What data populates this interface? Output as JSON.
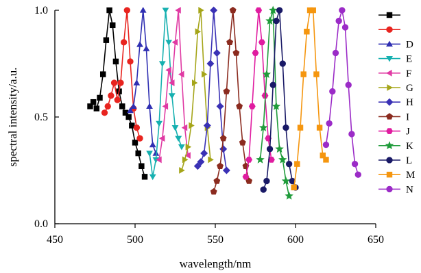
{
  "chart_data": {
    "type": "line",
    "xlabel": "wavelength/nm",
    "ylabel": "spectral intensity/a.u.",
    "xlim": [
      450,
      650
    ],
    "ylim": [
      0,
      1.0
    ],
    "xticks": [
      "450",
      "500",
      "550",
      "600",
      "650"
    ],
    "yticks": [
      "0.0",
      "0.5",
      "1.0"
    ],
    "grid": false,
    "legend_position": "right",
    "series": [
      {
        "name": "",
        "color": "#000000",
        "marker": "square",
        "x": [
          472,
          474,
          476,
          478,
          480,
          482,
          484,
          486,
          488,
          490,
          492,
          494,
          496,
          498,
          500,
          502,
          504,
          506
        ],
        "y": [
          0.55,
          0.57,
          0.54,
          0.59,
          0.7,
          0.86,
          1.0,
          0.93,
          0.76,
          0.62,
          0.55,
          0.52,
          0.5,
          0.46,
          0.38,
          0.33,
          0.27,
          0.22
        ]
      },
      {
        "name": "",
        "color": "#e8241f",
        "marker": "circle",
        "x": [
          481,
          483,
          485,
          487,
          489,
          491,
          493,
          495,
          497,
          499,
          501,
          503
        ],
        "y": [
          0.52,
          0.55,
          0.6,
          0.66,
          0.58,
          0.66,
          0.85,
          1.0,
          0.76,
          0.54,
          0.45,
          0.4
        ]
      },
      {
        "name": "D",
        "color": "#2f2fb2",
        "marker": "triangle-up",
        "x": [
          497,
          499,
          501,
          503,
          505,
          507,
          509,
          511,
          513
        ],
        "y": [
          0.53,
          0.55,
          0.66,
          0.84,
          1.0,
          0.82,
          0.55,
          0.37,
          0.33
        ]
      },
      {
        "name": "E",
        "color": "#16b0b0",
        "marker": "triangle-down",
        "x": [
          509,
          511,
          513,
          515,
          517,
          519,
          521,
          523,
          525,
          527,
          529
        ],
        "y": [
          0.33,
          0.22,
          0.3,
          0.47,
          0.75,
          1.0,
          0.85,
          0.6,
          0.45,
          0.4,
          0.36
        ]
      },
      {
        "name": "F",
        "color": "#e03aa3",
        "marker": "triangle-left",
        "x": [
          515,
          517,
          519,
          521,
          523,
          525,
          527,
          529,
          531,
          533
        ],
        "y": [
          0.3,
          0.4,
          0.55,
          0.72,
          0.66,
          0.85,
          1.0,
          0.7,
          0.45,
          0.32
        ]
      },
      {
        "name": "G",
        "color": "#a5a519",
        "marker": "triangle-right",
        "x": [
          529,
          531,
          533,
          535,
          537,
          539,
          541,
          543,
          545,
          547
        ],
        "y": [
          0.25,
          0.3,
          0.36,
          0.46,
          0.66,
          0.9,
          1.0,
          0.7,
          0.45,
          0.3
        ]
      },
      {
        "name": "H",
        "color": "#3a31b5",
        "marker": "diamond",
        "x": [
          539,
          541,
          543,
          545,
          547,
          549,
          551,
          553,
          555,
          557
        ],
        "y": [
          0.27,
          0.29,
          0.33,
          0.46,
          0.75,
          1.0,
          0.8,
          0.55,
          0.35,
          0.25
        ]
      },
      {
        "name": "I",
        "color": "#8b2b1f",
        "marker": "pentagon",
        "x": [
          549,
          551,
          553,
          555,
          557,
          559,
          561,
          563,
          565,
          567,
          569,
          571
        ],
        "y": [
          0.15,
          0.2,
          0.27,
          0.4,
          0.62,
          0.85,
          1.0,
          0.8,
          0.55,
          0.38,
          0.27,
          0.2
        ]
      },
      {
        "name": "J",
        "color": "#e01ca0",
        "marker": "hexagon",
        "x": [
          569,
          571,
          573,
          575,
          577,
          579,
          581,
          583,
          585
        ],
        "y": [
          0.22,
          0.3,
          0.55,
          0.8,
          1.0,
          0.85,
          0.6,
          0.4,
          0.3
        ]
      },
      {
        "name": "K",
        "color": "#1f9b3a",
        "marker": "star",
        "x": [
          578,
          580,
          582,
          584,
          586,
          588,
          590,
          592,
          594,
          596
        ],
        "y": [
          0.3,
          0.45,
          0.7,
          0.95,
          1.0,
          0.55,
          0.35,
          0.3,
          0.2,
          0.13
        ]
      },
      {
        "name": "L",
        "color": "#191966",
        "marker": "circle",
        "x": [
          580,
          582,
          584,
          586,
          588,
          590,
          592,
          594,
          596,
          598,
          600
        ],
        "y": [
          0.16,
          0.2,
          0.35,
          0.65,
          0.95,
          1.0,
          0.75,
          0.45,
          0.28,
          0.2,
          0.17
        ]
      },
      {
        "name": "M",
        "color": "#f5960f",
        "marker": "square",
        "x": [
          599,
          601,
          603,
          605,
          607,
          609,
          611,
          613,
          615,
          617,
          619
        ],
        "y": [
          0.17,
          0.28,
          0.45,
          0.7,
          0.9,
          1.0,
          1.0,
          0.7,
          0.45,
          0.32,
          0.3
        ]
      },
      {
        "name": "N",
        "color": "#9b2bc7",
        "marker": "circle",
        "x": [
          619,
          621,
          623,
          625,
          627,
          629,
          631,
          633,
          635,
          637,
          639
        ],
        "y": [
          0.37,
          0.47,
          0.62,
          0.8,
          0.95,
          1.0,
          0.92,
          0.65,
          0.42,
          0.28,
          0.23
        ]
      }
    ]
  }
}
